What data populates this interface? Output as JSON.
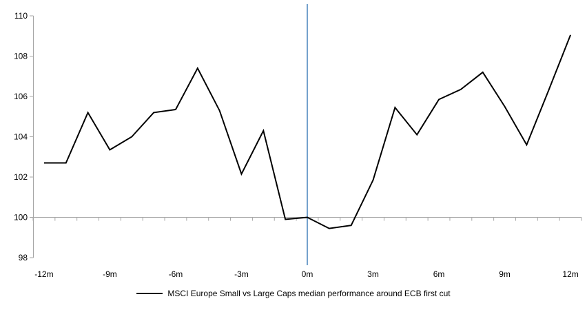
{
  "chart_data": {
    "type": "line",
    "title": "",
    "legend": "MSCI Europe Small vs Large Caps median performance around ECB first cut",
    "legend_position": "bottom-center",
    "grid": "off",
    "categories": [
      "-12m",
      "-11m",
      "-10m",
      "-9m",
      "-8m",
      "-7m",
      "-6m",
      "-5m",
      "-4m",
      "-3m",
      "-2m",
      "-1m",
      "0m",
      "1m",
      "2m",
      "3m",
      "4m",
      "5m",
      "6m",
      "7m",
      "8m",
      "9m",
      "10m",
      "11m",
      "12m"
    ],
    "series": [
      {
        "name": "MSCI Europe Small vs Large Caps median performance around ECB first cut",
        "values": [
          102.7,
          102.7,
          105.2,
          103.35,
          104.0,
          105.2,
          105.35,
          107.4,
          105.3,
          102.15,
          104.3,
          99.9,
          100.0,
          99.45,
          99.6,
          101.85,
          105.45,
          104.1,
          105.85,
          106.35,
          107.2,
          105.5,
          103.6,
          106.3,
          109.05
        ]
      }
    ],
    "x_tick_labels": [
      "-12m",
      "-9m",
      "-6m",
      "-3m",
      "0m",
      "3m",
      "6m",
      "9m",
      "12m"
    ],
    "y_ticks": [
      110,
      108,
      106,
      104,
      102,
      100,
      98
    ],
    "ylim": [
      98,
      110
    ],
    "baseline_value": 100,
    "event_line": {
      "at": "0m"
    },
    "colors": {
      "series": "#000000",
      "axis": "#a6a6a6",
      "event_line": "#73a1cc",
      "text": "#000000"
    }
  }
}
